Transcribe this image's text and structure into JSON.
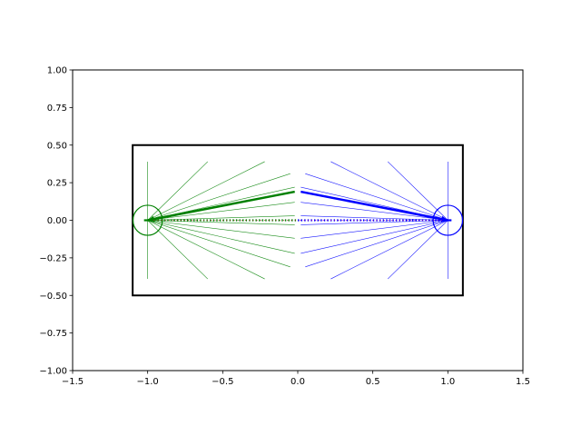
{
  "chart_data": {
    "type": "scatter",
    "title": "",
    "xlabel": "",
    "ylabel": "",
    "xlim": [
      -1.5,
      1.5
    ],
    "ylim": [
      -1.0,
      1.0
    ],
    "grid": false,
    "xticks": [
      "−1.5",
      "−1.0",
      "−0.5",
      "0.0",
      "0.5",
      "1.0",
      "1.5"
    ],
    "xtick_values": [
      -1.5,
      -1.0,
      -0.5,
      0.0,
      0.5,
      1.0,
      1.5
    ],
    "yticks": [
      "−1.00",
      "−0.75",
      "−0.50",
      "−0.25",
      "0.00",
      "0.25",
      "0.50",
      "0.75",
      "1.00"
    ],
    "ytick_values": [
      -1.0,
      -0.75,
      -0.5,
      -0.25,
      0.0,
      0.25,
      0.5,
      0.75,
      1.0
    ],
    "box": {
      "x0": -1.1,
      "x1": 1.1,
      "y0": -0.5,
      "y1": 0.5,
      "color": "#000000"
    },
    "sources": [
      {
        "center": [
          -1.0,
          0.0
        ],
        "radius": 0.1,
        "color": "#008000",
        "ray_ends": [
          [
            -1.0,
            0.39
          ],
          [
            -0.6,
            0.39
          ],
          [
            -0.22,
            0.39
          ],
          [
            -0.05,
            0.31
          ],
          [
            -0.02,
            0.22
          ],
          [
            -0.02,
            0.12
          ],
          [
            -0.02,
            0.03
          ],
          [
            -1.0,
            -0.39
          ],
          [
            -0.6,
            -0.39
          ],
          [
            -0.22,
            -0.39
          ],
          [
            -0.05,
            -0.31
          ],
          [
            -0.02,
            -0.22
          ],
          [
            -0.02,
            -0.12
          ],
          [
            -0.02,
            -0.03
          ]
        ],
        "arrow_from": [
          -0.02,
          0.19
        ]
      },
      {
        "center": [
          1.0,
          0.0
        ],
        "radius": 0.1,
        "color": "#0000ff",
        "ray_ends": [
          [
            1.0,
            0.39
          ],
          [
            0.6,
            0.39
          ],
          [
            0.22,
            0.39
          ],
          [
            0.05,
            0.31
          ],
          [
            0.02,
            0.22
          ],
          [
            0.02,
            0.12
          ],
          [
            0.02,
            0.03
          ],
          [
            1.0,
            -0.39
          ],
          [
            0.6,
            -0.39
          ],
          [
            0.22,
            -0.39
          ],
          [
            0.05,
            -0.31
          ],
          [
            0.02,
            -0.22
          ],
          [
            0.02,
            -0.12
          ],
          [
            0.02,
            -0.03
          ]
        ],
        "arrow_from": [
          0.02,
          0.19
        ]
      }
    ],
    "dotted_segments": [
      {
        "from": [
          -1.0,
          0.0
        ],
        "to": [
          0.0,
          0.0
        ],
        "color": "#008000",
        "accent": "#b03030"
      },
      {
        "from": [
          0.0,
          0.0
        ],
        "to": [
          1.0,
          0.0
        ],
        "color": "#0000ff",
        "accent": "#b000b0"
      }
    ]
  }
}
